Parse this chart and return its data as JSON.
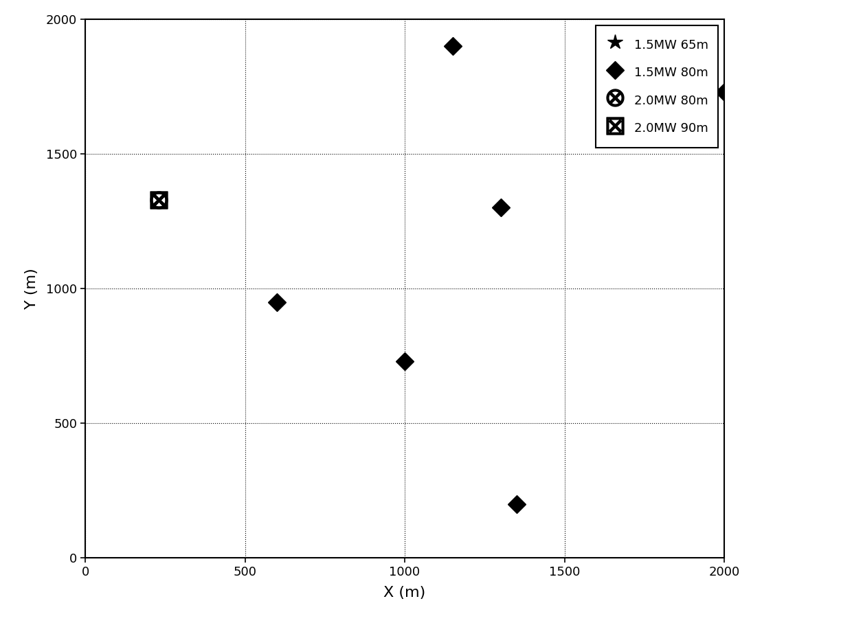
{
  "diamond_80m_x": [
    600,
    1000,
    1150,
    1300,
    1350,
    2000
  ],
  "diamond_80m_y": [
    950,
    730,
    1900,
    1300,
    200,
    1730
  ],
  "circle_x_x": [
    230
  ],
  "circle_x_y": [
    1330
  ],
  "square_x_x": [
    230
  ],
  "square_x_y": [
    1330
  ],
  "star_x": [],
  "star_y": [],
  "xlim": [
    0,
    2000
  ],
  "ylim": [
    0,
    2000
  ],
  "xticks": [
    0,
    500,
    1000,
    1500,
    2000
  ],
  "yticks": [
    0,
    500,
    1000,
    1500,
    2000
  ],
  "xlabel": "X (m)",
  "ylabel": "Y (m)",
  "legend_labels": [
    "1.5MW 65m",
    "1.5MW 80m",
    "2.0MW 80m",
    "2.0MW 90m"
  ],
  "marker_color": "#000000",
  "background_color": "#ffffff",
  "figsize": [
    12.4,
    9.23
  ],
  "dpi": 100
}
